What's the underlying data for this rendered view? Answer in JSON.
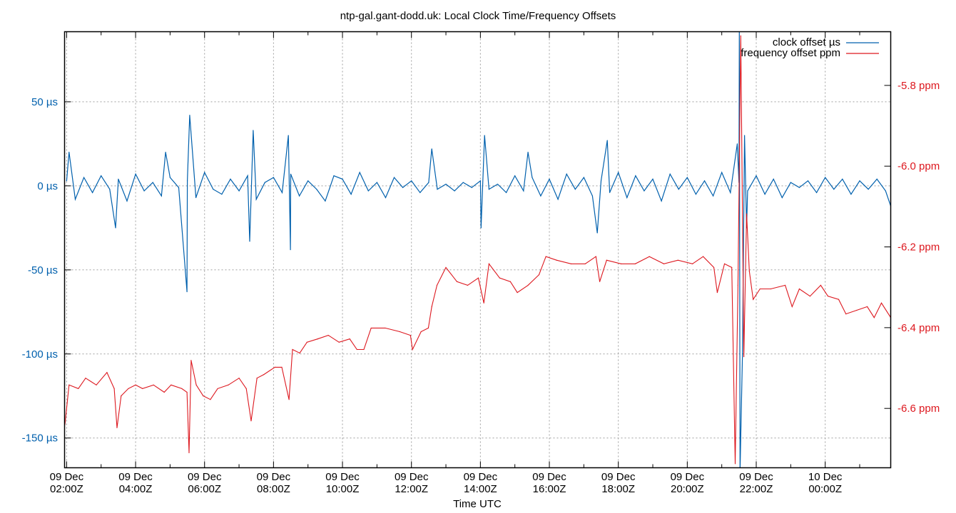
{
  "chart_data": {
    "type": "line",
    "title": "ntp-gal.gant-dodd.uk: Local Clock Time/Frequency Offsets",
    "xlabel": "Time UTC",
    "x_units": "hours after 09 Dec 02:00Z",
    "xlim": [
      -0.06,
      23.9
    ],
    "ylim_left": [
      -167.7,
      91.7
    ],
    "ylim_right": [
      -6.747,
      -5.667
    ],
    "grid": true,
    "legend_position": "top-right",
    "x_ticks": [
      {
        "t": 0,
        "line1": "09 Dec",
        "line2": "02:00Z"
      },
      {
        "t": 2,
        "line1": "09 Dec",
        "line2": "04:00Z"
      },
      {
        "t": 4,
        "line1": "09 Dec",
        "line2": "06:00Z"
      },
      {
        "t": 6,
        "line1": "09 Dec",
        "line2": "08:00Z"
      },
      {
        "t": 8,
        "line1": "09 Dec",
        "line2": "10:00Z"
      },
      {
        "t": 10,
        "line1": "09 Dec",
        "line2": "12:00Z"
      },
      {
        "t": 12,
        "line1": "09 Dec",
        "line2": "14:00Z"
      },
      {
        "t": 14,
        "line1": "09 Dec",
        "line2": "16:00Z"
      },
      {
        "t": 16,
        "line1": "09 Dec",
        "line2": "18:00Z"
      },
      {
        "t": 18,
        "line1": "09 Dec",
        "line2": "20:00Z"
      },
      {
        "t": 20,
        "line1": "09 Dec",
        "line2": "22:00Z"
      },
      {
        "t": 22,
        "line1": "10 Dec",
        "line2": "00:00Z"
      }
    ],
    "y_left_ticks": [
      {
        "v": 50,
        "label": "50 µs"
      },
      {
        "v": 0,
        "label": "0 µs"
      },
      {
        "v": -50,
        "label": "-50 µs"
      },
      {
        "v": -100,
        "label": "-100 µs"
      },
      {
        "v": -150,
        "label": "-150 µs"
      }
    ],
    "y_right_ticks": [
      {
        "v": -5.8,
        "label": "-5.8 ppm"
      },
      {
        "v": -6.0,
        "label": "-6.0 ppm"
      },
      {
        "v": -6.2,
        "label": "-6.2 ppm"
      },
      {
        "v": -6.4,
        "label": "-6.4 ppm"
      },
      {
        "v": -6.6,
        "label": "-6.6 ppm"
      }
    ],
    "series": [
      {
        "name": "clock offset µs",
        "axis": "left",
        "color": "#0060ad",
        "base_step_hours": 0.25,
        "base_values": [
          3,
          -8,
          5,
          -4,
          6,
          -2,
          4,
          -9,
          7,
          -3,
          2,
          -6,
          5,
          -1,
          3,
          -7,
          8,
          -2,
          -5,
          4,
          -3,
          6,
          -8,
          2,
          5,
          -4,
          7,
          -6,
          3,
          -2,
          -9,
          6,
          4,
          -5,
          8,
          -3,
          2,
          -7,
          5,
          -1,
          3,
          -4,
          2,
          -2,
          1,
          -3,
          2,
          -1,
          3,
          -2,
          1,
          -4,
          6,
          -3,
          5,
          -6,
          4,
          -8,
          7,
          -2,
          5,
          -6,
          3,
          -4,
          8,
          -7,
          6,
          -3,
          4,
          -9,
          7,
          -2,
          5,
          -5,
          3,
          -6,
          8,
          -4,
          2,
          -3,
          6,
          -5,
          4,
          -7,
          2,
          -1,
          3,
          -4,
          5,
          -2,
          4,
          -5,
          3,
          -2,
          4,
          -3
        ],
        "spikes": [
          [
            0.07,
            20
          ],
          [
            1.42,
            -25
          ],
          [
            2.87,
            20
          ],
          [
            3.49,
            -63
          ],
          [
            3.57,
            42
          ],
          [
            5.31,
            -33
          ],
          [
            5.41,
            33
          ],
          [
            6.43,
            30
          ],
          [
            6.49,
            -38
          ],
          [
            10.59,
            22
          ],
          [
            12.02,
            -25
          ],
          [
            12.12,
            30
          ],
          [
            13.38,
            20
          ],
          [
            15.39,
            -28
          ],
          [
            15.68,
            27
          ],
          [
            19.45,
            25
          ],
          [
            19.51,
            95
          ],
          [
            19.53,
            -170
          ],
          [
            19.6,
            -100
          ],
          [
            19.66,
            30
          ],
          [
            19.72,
            -25
          ],
          [
            23.9,
            -12
          ]
        ]
      },
      {
        "name": "frequency offset ppm",
        "axis": "right",
        "color": "#dd181f",
        "points": [
          [
            -0.05,
            -6.64
          ],
          [
            0.07,
            -6.542
          ],
          [
            0.34,
            -6.551
          ],
          [
            0.55,
            -6.525
          ],
          [
            0.86,
            -6.542
          ],
          [
            1.17,
            -6.511
          ],
          [
            1.38,
            -6.551
          ],
          [
            1.46,
            -6.648
          ],
          [
            1.58,
            -6.569
          ],
          [
            1.79,
            -6.551
          ],
          [
            2.0,
            -6.542
          ],
          [
            2.2,
            -6.551
          ],
          [
            2.52,
            -6.542
          ],
          [
            2.83,
            -6.56
          ],
          [
            3.03,
            -6.542
          ],
          [
            3.34,
            -6.551
          ],
          [
            3.49,
            -6.56
          ],
          [
            3.55,
            -6.71
          ],
          [
            3.61,
            -6.481
          ],
          [
            3.76,
            -6.542
          ],
          [
            3.96,
            -6.569
          ],
          [
            4.17,
            -6.578
          ],
          [
            4.38,
            -6.551
          ],
          [
            4.69,
            -6.542
          ],
          [
            5.0,
            -6.525
          ],
          [
            5.21,
            -6.551
          ],
          [
            5.35,
            -6.631
          ],
          [
            5.52,
            -6.525
          ],
          [
            5.72,
            -6.516
          ],
          [
            6.04,
            -6.498
          ],
          [
            6.24,
            -6.498
          ],
          [
            6.45,
            -6.578
          ],
          [
            6.55,
            -6.454
          ],
          [
            6.76,
            -6.463
          ],
          [
            6.97,
            -6.436
          ],
          [
            7.28,
            -6.428
          ],
          [
            7.59,
            -6.419
          ],
          [
            7.9,
            -6.436
          ],
          [
            8.21,
            -6.428
          ],
          [
            8.42,
            -6.454
          ],
          [
            8.62,
            -6.454
          ],
          [
            8.83,
            -6.401
          ],
          [
            9.24,
            -6.401
          ],
          [
            9.66,
            -6.41
          ],
          [
            9.97,
            -6.419
          ],
          [
            10.03,
            -6.454
          ],
          [
            10.28,
            -6.41
          ],
          [
            10.49,
            -6.401
          ],
          [
            10.59,
            -6.348
          ],
          [
            10.74,
            -6.295
          ],
          [
            11.0,
            -6.251
          ],
          [
            11.32,
            -6.286
          ],
          [
            11.63,
            -6.295
          ],
          [
            11.94,
            -6.277
          ],
          [
            12.1,
            -6.339
          ],
          [
            12.25,
            -6.242
          ],
          [
            12.56,
            -6.277
          ],
          [
            12.87,
            -6.286
          ],
          [
            13.07,
            -6.313
          ],
          [
            13.38,
            -6.295
          ],
          [
            13.7,
            -6.269
          ],
          [
            13.9,
            -6.224
          ],
          [
            14.21,
            -6.233
          ],
          [
            14.63,
            -6.242
          ],
          [
            15.04,
            -6.242
          ],
          [
            15.35,
            -6.224
          ],
          [
            15.46,
            -6.286
          ],
          [
            15.66,
            -6.233
          ],
          [
            16.08,
            -6.242
          ],
          [
            16.49,
            -6.242
          ],
          [
            16.9,
            -6.224
          ],
          [
            17.32,
            -6.242
          ],
          [
            17.73,
            -6.233
          ],
          [
            18.15,
            -6.242
          ],
          [
            18.46,
            -6.224
          ],
          [
            18.77,
            -6.251
          ],
          [
            18.87,
            -6.313
          ],
          [
            19.08,
            -6.242
          ],
          [
            19.29,
            -6.251
          ],
          [
            19.39,
            -6.737
          ],
          [
            19.47,
            -6.295
          ],
          [
            19.55,
            -5.677
          ],
          [
            19.64,
            -6.472
          ],
          [
            19.72,
            -6.118
          ],
          [
            19.8,
            -6.26
          ],
          [
            19.91,
            -6.33
          ],
          [
            20.11,
            -6.304
          ],
          [
            20.42,
            -6.304
          ],
          [
            20.84,
            -6.295
          ],
          [
            21.04,
            -6.348
          ],
          [
            21.25,
            -6.304
          ],
          [
            21.56,
            -6.322
          ],
          [
            21.87,
            -6.295
          ],
          [
            22.08,
            -6.322
          ],
          [
            22.39,
            -6.33
          ],
          [
            22.6,
            -6.366
          ],
          [
            22.91,
            -6.357
          ],
          [
            23.22,
            -6.348
          ],
          [
            23.42,
            -6.375
          ],
          [
            23.63,
            -6.339
          ],
          [
            23.9,
            -6.375
          ]
        ]
      }
    ]
  }
}
